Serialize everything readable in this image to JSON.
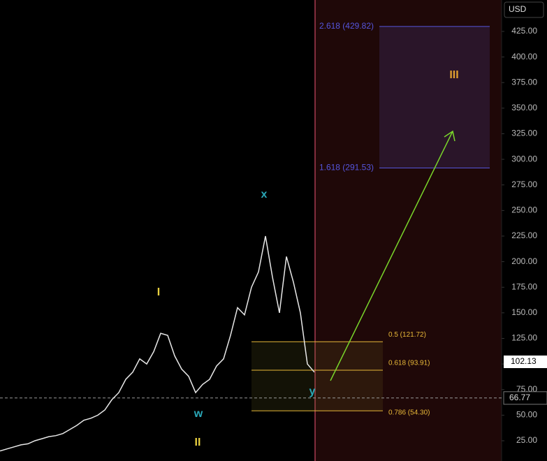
{
  "chart_data": {
    "type": "line",
    "currency": "USD",
    "values": [
      15,
      17,
      19,
      21,
      22,
      25,
      27,
      29,
      30,
      32,
      36,
      40,
      45,
      47,
      50,
      55,
      65,
      72,
      85,
      92,
      105,
      100,
      112,
      130,
      128,
      108,
      95,
      88,
      72,
      80,
      85,
      98,
      105,
      128,
      155,
      148,
      175,
      190,
      225,
      185,
      150,
      205,
      180,
      150,
      100,
      92
    ],
    "color": "#e8e8e8",
    "ylim": [
      5.2,
      455.7
    ],
    "yticks": [
      {
        "value": 25,
        "label": "25.00"
      },
      {
        "value": 50,
        "label": "50.00"
      },
      {
        "value": 75,
        "label": "75.00"
      },
      {
        "value": 100,
        "label": "100.00"
      },
      {
        "value": 125,
        "label": "125.00"
      },
      {
        "value": 150,
        "label": "150.00"
      },
      {
        "value": 175,
        "label": "175.00"
      },
      {
        "value": 200,
        "label": "200.00"
      },
      {
        "value": 225,
        "label": "225.00"
      },
      {
        "value": 250,
        "label": "250.00"
      },
      {
        "value": 275,
        "label": "275.00"
      },
      {
        "value": 300,
        "label": "300.00"
      },
      {
        "value": 325,
        "label": "325.00"
      },
      {
        "value": 350,
        "label": "350.00"
      },
      {
        "value": 375,
        "label": "375.00"
      },
      {
        "value": 400,
        "label": "400.00"
      },
      {
        "value": 425,
        "label": "425.00"
      }
    ],
    "last_price": 102.13,
    "marker_price": 66.77,
    "fib_extension": {
      "color": "#5555dd",
      "levels": [
        {
          "value": 429.82,
          "label": "2.618 (429.82)"
        },
        {
          "value": 291.53,
          "label": "1.618 (291.53)"
        }
      ]
    },
    "fib_retracement": {
      "color": "#e8b838",
      "levels": [
        {
          "value": 121.72,
          "label": "0.5 (121.72)"
        },
        {
          "value": 93.91,
          "label": "0.618 (93.91)"
        },
        {
          "value": 54.3,
          "label": "0.786 (54.30)"
        }
      ]
    },
    "annotations": [
      "I",
      "II",
      "III",
      "w",
      "x",
      "y"
    ]
  }
}
